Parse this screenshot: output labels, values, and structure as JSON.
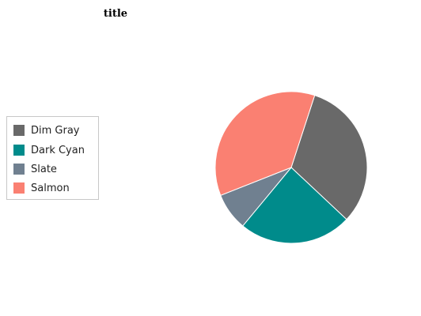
{
  "chart_data": {
    "type": "pie",
    "title": "title",
    "series": [
      {
        "name": "Dim Gray",
        "value": 32,
        "color": "#696969"
      },
      {
        "name": "Dark Cyan",
        "value": 24,
        "color": "#008b8b"
      },
      {
        "name": "Slate",
        "value": 8,
        "color": "#708090"
      },
      {
        "name": "Salmon",
        "value": 36,
        "color": "#fa8072"
      }
    ],
    "legend_placement": "left"
  }
}
